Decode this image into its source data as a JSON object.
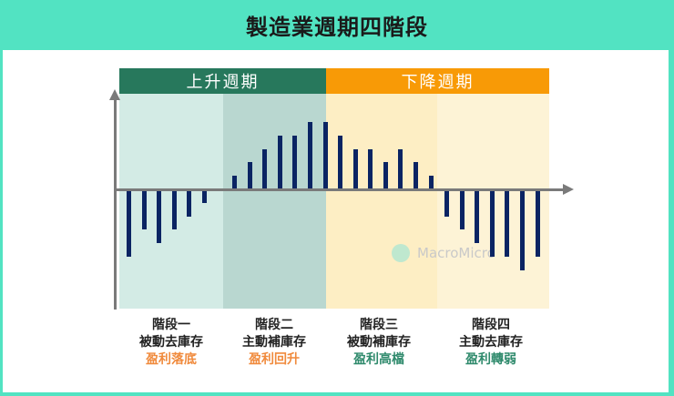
{
  "title": "製造業週期四階段",
  "cycles": [
    {
      "label": "上升週期",
      "color": "#27785c"
    },
    {
      "label": "下降週期",
      "color": "#f89a06"
    }
  ],
  "phases": [
    {
      "name": "階段一",
      "inventory": "被動去庫存",
      "profit": "盈利落底",
      "profit_color": "#f08a3c",
      "bg": "#d3ebe5"
    },
    {
      "name": "階段二",
      "inventory": "主動補庫存",
      "profit": "盈利回升",
      "profit_color": "#f08a3c",
      "bg": "#b9d7d0"
    },
    {
      "name": "階段三",
      "inventory": "被動補庫存",
      "profit": "盈利高檔",
      "profit_color": "#2f8a6c",
      "bg": "#fdeec4"
    },
    {
      "name": "階段四",
      "inventory": "主動去庫存",
      "profit": "盈利轉弱",
      "profit_color": "#2f8a6c",
      "bg": "#fdf3d6"
    }
  ],
  "watermark": "MacroMicro",
  "chart_data": {
    "type": "bar",
    "title": "製造業週期四階段",
    "xlabel": "",
    "ylabel": "",
    "grid": false,
    "phases": [
      "階段一",
      "階段二",
      "階段三",
      "階段四"
    ],
    "values": [
      -5,
      -3,
      -4,
      -3,
      -2,
      -1,
      1,
      2,
      3,
      4,
      4,
      5,
      5,
      4,
      3,
      3,
      2,
      3,
      2,
      1,
      -2,
      -3,
      -4,
      -5,
      -5,
      -6,
      -5
    ],
    "phase_index": [
      0,
      0,
      0,
      0,
      0,
      0,
      1,
      1,
      1,
      1,
      1,
      1,
      1,
      2,
      2,
      2,
      2,
      2,
      2,
      2,
      3,
      3,
      3,
      3,
      3,
      3,
      3
    ]
  }
}
